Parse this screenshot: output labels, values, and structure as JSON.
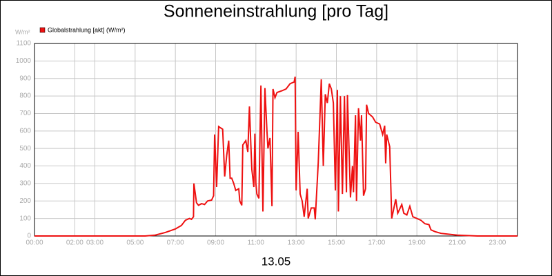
{
  "chart_data": {
    "type": "line",
    "title": "Sonneneinstrahlung [pro Tag]",
    "y_unit": "W/m²",
    "xlabel": "13.05",
    "x": [
      0,
      5.5,
      6.0,
      6.5,
      7.0,
      7.3,
      7.5,
      7.7,
      7.8,
      7.9,
      7.92,
      8.05,
      8.15,
      8.3,
      8.45,
      8.6,
      8.8,
      8.9,
      8.95,
      9.05,
      9.15,
      9.35,
      9.45,
      9.55,
      9.65,
      9.72,
      9.8,
      9.9,
      10.0,
      10.15,
      10.2,
      10.3,
      10.35,
      10.5,
      10.6,
      10.68,
      10.75,
      10.8,
      10.9,
      10.95,
      11.0,
      11.05,
      11.15,
      11.25,
      11.35,
      11.45,
      11.55,
      11.6,
      11.7,
      11.8,
      11.85,
      11.95,
      12.05,
      12.3,
      12.5,
      12.7,
      12.9,
      12.95,
      13.0,
      13.1,
      13.2,
      13.3,
      13.4,
      13.55,
      13.6,
      13.75,
      13.9,
      13.95,
      14.1,
      14.25,
      14.35,
      14.45,
      14.55,
      14.65,
      14.75,
      14.85,
      14.95,
      15.05,
      15.1,
      15.2,
      15.3,
      15.4,
      15.5,
      15.55,
      15.7,
      15.8,
      15.85,
      15.95,
      16.0,
      16.1,
      16.2,
      16.25,
      16.35,
      16.45,
      16.5,
      16.6,
      16.8,
      16.95,
      17.15,
      17.3,
      17.4,
      17.45,
      17.5,
      17.65,
      17.75,
      17.95,
      18.05,
      18.25,
      18.35,
      18.5,
      18.65,
      18.8,
      19.0,
      19.2,
      19.4,
      19.6,
      19.7,
      19.9,
      20.2,
      20.6,
      21.0,
      22.0,
      24.0
    ],
    "series": [
      {
        "name": "Globalstrahlung [akt] (W/m²)",
        "color": "#ee1111",
        "values": [
          0,
          0,
          5,
          20,
          40,
          60,
          90,
          100,
          95,
          110,
          300,
          190,
          175,
          185,
          180,
          200,
          205,
          230,
          580,
          280,
          625,
          610,
          340,
          460,
          545,
          330,
          330,
          300,
          260,
          270,
          200,
          175,
          520,
          545,
          480,
          740,
          520,
          380,
          280,
          585,
          300,
          240,
          215,
          860,
          140,
          845,
          600,
          500,
          560,
          170,
          840,
          790,
          820,
          830,
          840,
          870,
          880,
          910,
          260,
          595,
          240,
          200,
          110,
          270,
          100,
          160,
          160,
          95,
          420,
          895,
          400,
          810,
          760,
          870,
          840,
          760,
          260,
          835,
          140,
          800,
          240,
          800,
          250,
          805,
          220,
          400,
          250,
          690,
          200,
          730,
          545,
          690,
          230,
          270,
          750,
          700,
          680,
          650,
          640,
          580,
          630,
          415,
          580,
          510,
          100,
          210,
          130,
          180,
          130,
          120,
          170,
          110,
          100,
          90,
          70,
          65,
          35,
          25,
          15,
          10,
          5,
          0,
          0
        ]
      }
    ],
    "xlim": [
      0,
      24
    ],
    "xticks": [
      {
        "value": 0,
        "label": "00:00"
      },
      {
        "value": 2,
        "label": "02:00"
      },
      {
        "value": 3,
        "label": "03:00"
      },
      {
        "value": 5,
        "label": "05:00"
      },
      {
        "value": 7,
        "label": "07:00"
      },
      {
        "value": 9,
        "label": "09:00"
      },
      {
        "value": 11,
        "label": "11:00"
      },
      {
        "value": 13,
        "label": "13:00"
      },
      {
        "value": 15,
        "label": "15:00"
      },
      {
        "value": 17,
        "label": "17:00"
      },
      {
        "value": 19,
        "label": "19:00"
      },
      {
        "value": 21,
        "label": "21:00"
      },
      {
        "value": 23,
        "label": "23:00"
      }
    ],
    "ylim": [
      0,
      1100
    ],
    "yticks": [
      0,
      100,
      200,
      300,
      400,
      500,
      600,
      700,
      800,
      900,
      1000,
      1100
    ],
    "grid": true
  }
}
